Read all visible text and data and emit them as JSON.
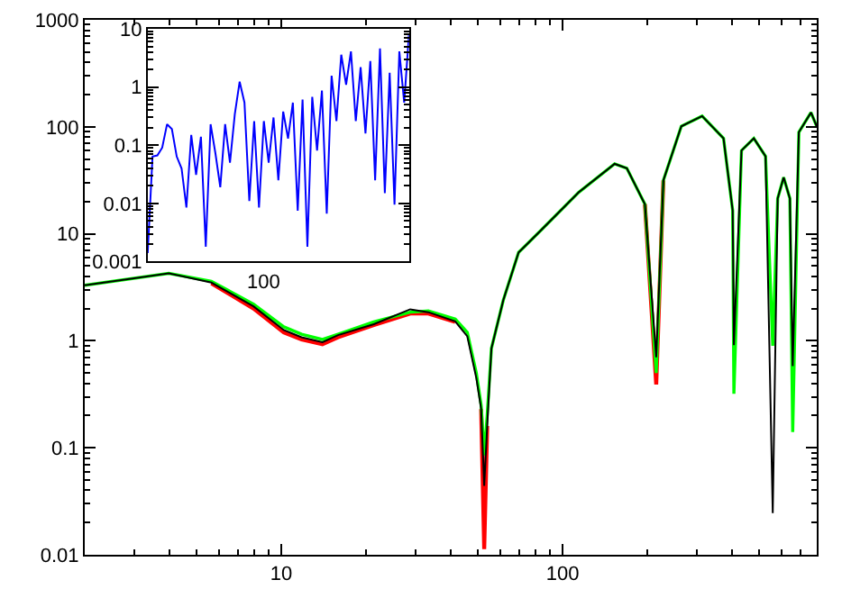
{
  "chart_data": [
    {
      "type": "line",
      "log": "xy",
      "grid": false,
      "marker": "none",
      "line_style": "solid",
      "x": [
        2.0,
        3.98,
        5.64,
        7.96,
        10.2,
        11.8,
        14.0,
        15.9,
        21.3,
        28.7,
        33.3,
        41.5,
        45.8,
        49.3,
        51.3,
        52.6,
        53.9,
        55.8,
        61.5,
        69.7,
        73.2,
        84.9,
        114,
        153,
        169,
        196,
        215,
        228,
        264,
        313,
        373,
        402,
        406,
        432,
        478,
        526,
        558,
        581,
        610,
        642,
        657,
        691,
        763,
        800
      ],
      "xlim": [
        2,
        800
      ],
      "ylim": [
        0.01,
        1000
      ],
      "xticks": [
        10,
        100
      ],
      "yticks": [
        0.01,
        0.1,
        1,
        10,
        100,
        1000
      ],
      "series": [
        {
          "color": "#ff0000",
          "values": [
            null,
            null,
            3.45,
            2.0,
            1.2,
            1.03,
            0.93,
            1.08,
            1.4,
            1.8,
            1.8,
            1.5,
            null,
            null,
            0.23,
            0.0113,
            0.16,
            null,
            null,
            null,
            null,
            null,
            null,
            null,
            null,
            18.9,
            0.39,
            31.6,
            null,
            null,
            null,
            null,
            null,
            null,
            null,
            null,
            null,
            null,
            null,
            null,
            null,
            null,
            null,
            null
          ]
        },
        {
          "color": "#00ff00",
          "values": [
            3.3,
            4.27,
            3.6,
            2.2,
            1.35,
            1.15,
            1.03,
            1.15,
            1.5,
            1.85,
            1.9,
            1.6,
            1.2,
            0.5,
            0.25,
            0.085,
            0.2,
            0.85,
            2.4,
            6.7,
            7.6,
            11.2,
            24.4,
            45,
            41,
            18.9,
            0.5,
            31.6,
            101,
            126,
            78,
            16.5,
            0.32,
            60,
            78,
            53,
            0.9,
            21.4,
            33.7,
            21.4,
            0.14,
            89,
            136,
            101
          ]
        },
        {
          "color": "#000000",
          "values": [
            3.3,
            4.27,
            3.5,
            2.1,
            1.26,
            1.08,
            0.97,
            1.13,
            1.43,
            1.97,
            1.85,
            1.52,
            1.1,
            0.45,
            0.23,
            0.044,
            0.16,
            0.85,
            2.4,
            6.7,
            7.6,
            11.2,
            24.4,
            45,
            41,
            18.9,
            0.7,
            31.6,
            101,
            126,
            78,
            16.5,
            0.91,
            60,
            78,
            53,
            0.0245,
            21.4,
            33.7,
            21.4,
            0.58,
            89,
            136,
            101
          ]
        }
      ]
    },
    {
      "type": "line",
      "log": "y",
      "grid": false,
      "marker": "none",
      "line_style": "solid",
      "categories": [
        null,
        null,
        null,
        null,
        null,
        null,
        null,
        null,
        null,
        null,
        null,
        null,
        null,
        null,
        null,
        null,
        null,
        null,
        null,
        null,
        null,
        null,
        null,
        null,
        null,
        null,
        null,
        null,
        null,
        null,
        null,
        null,
        null,
        null,
        null,
        null,
        null,
        null,
        null,
        null,
        null,
        null,
        null,
        null,
        null,
        null,
        null,
        null,
        null,
        null,
        null,
        null,
        null,
        null,
        null
      ],
      "ylim": [
        0.001,
        10
      ],
      "yticks": [
        0.001,
        0.01,
        0.1,
        1,
        10
      ],
      "annotations": [
        "100"
      ],
      "series": [
        {
          "color": "#0000ff",
          "values": [
            0.0014,
            0.064,
            0.067,
            0.091,
            0.23,
            0.19,
            0.064,
            0.04,
            0.0085,
            0.15,
            0.031,
            0.14,
            0.0018,
            0.23,
            0.072,
            0.019,
            0.23,
            0.05,
            0.34,
            1.24,
            0.54,
            0.011,
            0.26,
            0.0085,
            0.26,
            0.05,
            0.3,
            0.025,
            0.38,
            0.13,
            0.54,
            0.0075,
            0.61,
            0.0018,
            0.68,
            0.081,
            0.87,
            0.0067,
            1.57,
            0.26,
            3.6,
            1.1,
            4.1,
            0.26,
            2.2,
            0.16,
            2.8,
            0.025,
            4.6,
            0.015,
            1.77,
            0.0095,
            4.1,
            0.54,
            8.3
          ]
        }
      ]
    }
  ]
}
